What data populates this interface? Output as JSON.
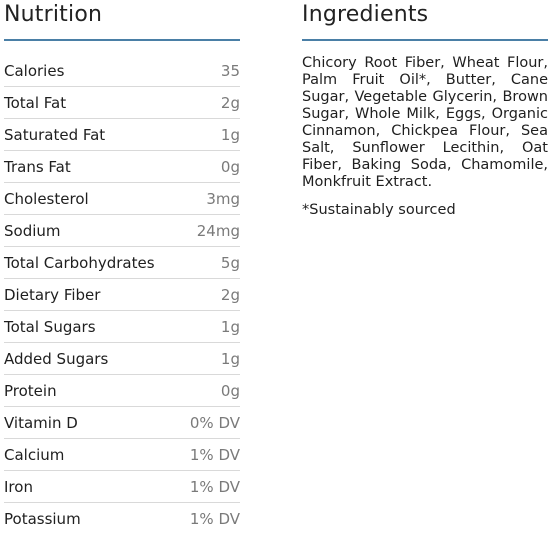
{
  "nutrition": {
    "title": "Nutrition",
    "rows": [
      {
        "name": "Calories",
        "value": "35"
      },
      {
        "name": "Total Fat",
        "value": "2g"
      },
      {
        "name": "Saturated Fat",
        "value": "1g"
      },
      {
        "name": "Trans Fat",
        "value": "0g"
      },
      {
        "name": "Cholesterol",
        "value": "3mg"
      },
      {
        "name": "Sodium",
        "value": "24mg"
      },
      {
        "name": "Total Carbohydrates",
        "value": "5g"
      },
      {
        "name": "Dietary Fiber",
        "value": "2g"
      },
      {
        "name": "Total Sugars",
        "value": "1g"
      },
      {
        "name": "Added Sugars",
        "value": "1g"
      },
      {
        "name": "Protein",
        "value": "0g"
      },
      {
        "name": "Vitamin D",
        "value": "0% DV"
      },
      {
        "name": "Calcium",
        "value": "1% DV"
      },
      {
        "name": "Iron",
        "value": "1% DV"
      },
      {
        "name": "Potassium",
        "value": "1% DV"
      }
    ]
  },
  "ingredients": {
    "title": "Ingredients",
    "text": "Chicory Root Fiber, Wheat Flour, Palm Fruit Oil*, Butter, Cane Sugar, Vegetable Glycerin, Brown Sugar, Whole Milk, Eggs, Organic Cinnamon, Chickpea Flour, Sea Salt, Sunflower Lecithin, Oat Fiber, Baking Soda, Chamomile, Monkfruit Extract.",
    "note": "*Sustainably sourced"
  },
  "colors": {
    "rule": "#4a7fa6",
    "row_divider": "#d9d9d9",
    "value_text": "#7a7a7a"
  }
}
